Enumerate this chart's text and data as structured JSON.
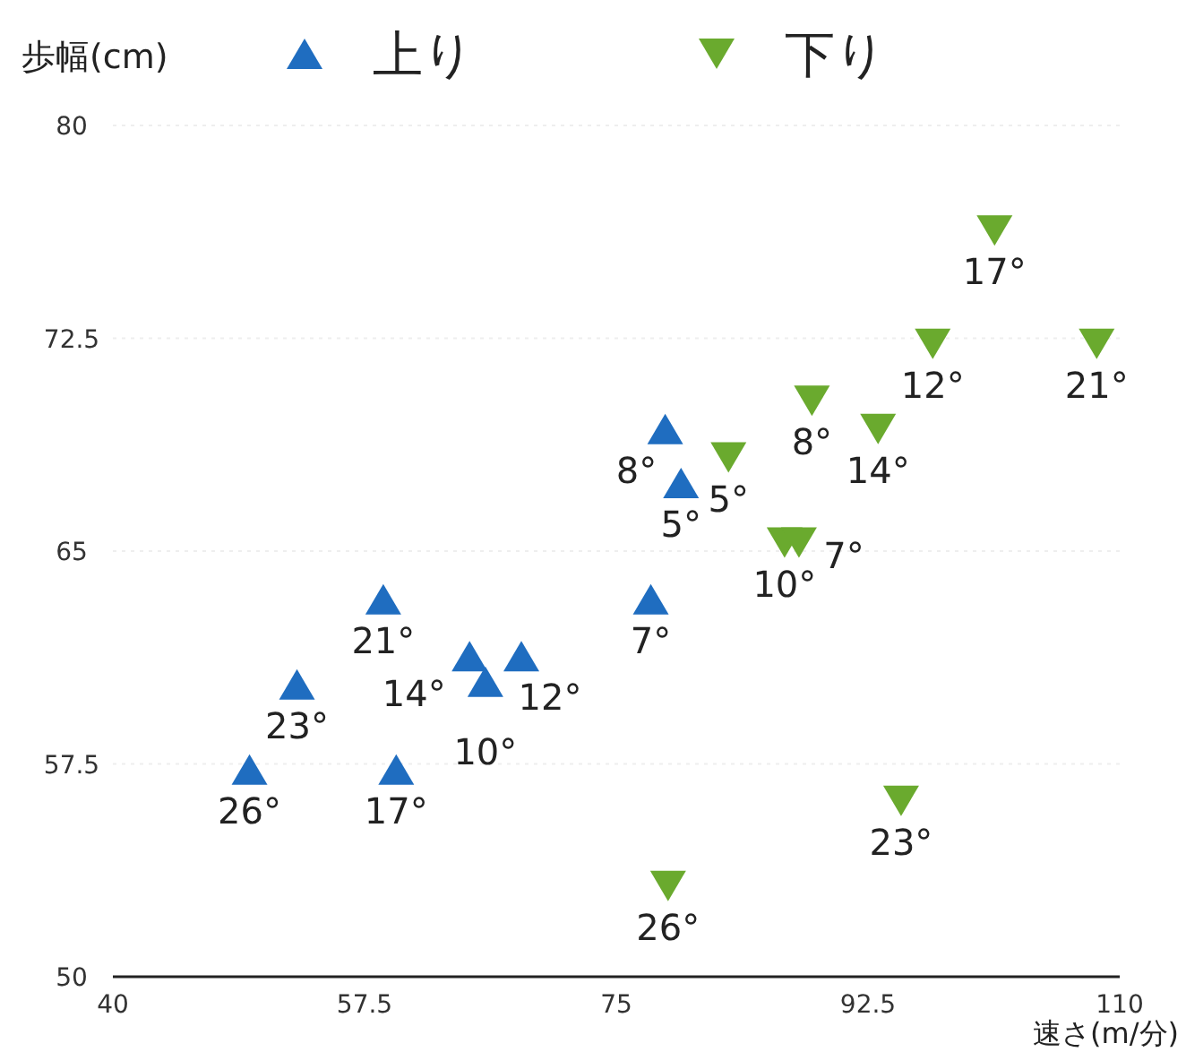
{
  "chart_data": {
    "type": "scatter",
    "ylabel": "歩幅(cm)",
    "xlabel": "速さ(m/分)",
    "xlim": [
      40,
      110
    ],
    "ylim": [
      50,
      80
    ],
    "xticks": [
      40,
      57.5,
      75,
      92.5,
      110
    ],
    "yticks": [
      50,
      57.5,
      65,
      72.5,
      80
    ],
    "grid": "y",
    "legend": "top",
    "series": [
      {
        "name": "上り",
        "color": "#1f6dc0",
        "marker": "triangle",
        "x": [
          49.5,
          52.8,
          58.8,
          59.7,
          64.8,
          68.4,
          65.9,
          77.4,
          78.4,
          79.5
        ],
        "values": [
          57.3,
          60.3,
          63.3,
          57.3,
          61.3,
          61.3,
          60.4,
          63.3,
          69.3,
          67.4
        ]
      },
      {
        "name": "下り",
        "color": "#6aaa2e",
        "marker": "triangle-down",
        "x": [
          78.6,
          94.8,
          108.4,
          101.3,
          97.0,
          93.2,
          88.6,
          82.8,
          86.7,
          87.7
        ],
        "values": [
          53.2,
          56.2,
          72.3,
          76.3,
          72.3,
          69.3,
          70.3,
          68.3,
          65.3,
          65.3
        ]
      }
    ],
    "annotations": [
      {
        "text": "26°",
        "x": 49.5,
        "y": 57.3
      },
      {
        "text": "23°",
        "x": 52.8,
        "y": 60.3
      },
      {
        "text": "21°",
        "x": 58.8,
        "y": 63.3
      },
      {
        "text": "17°",
        "x": 59.7,
        "y": 57.3
      },
      {
        "text": "14°",
        "x": 64.8,
        "y": 61.3
      },
      {
        "text": "12°",
        "x": 68.4,
        "y": 61.3
      },
      {
        "text": "10°",
        "x": 65.9,
        "y": 60.4
      },
      {
        "text": "7°",
        "x": 77.4,
        "y": 63.3
      },
      {
        "text": "8°",
        "x": 78.4,
        "y": 69.3
      },
      {
        "text": "5°",
        "x": 79.5,
        "y": 67.4
      },
      {
        "text": "26°",
        "x": 78.6,
        "y": 53.2
      },
      {
        "text": "23°",
        "x": 94.8,
        "y": 56.2
      },
      {
        "text": "21°",
        "x": 108.4,
        "y": 72.3
      },
      {
        "text": "17°",
        "x": 101.3,
        "y": 76.3
      },
      {
        "text": "12°",
        "x": 97.0,
        "y": 72.3
      },
      {
        "text": "14°",
        "x": 93.2,
        "y": 69.3
      },
      {
        "text": "8°",
        "x": 88.6,
        "y": 70.3
      },
      {
        "text": "5°",
        "x": 82.8,
        "y": 68.3
      },
      {
        "text": "10°",
        "x": 86.7,
        "y": 65.3
      },
      {
        "text": "7°",
        "x": 87.7,
        "y": 65.3
      }
    ]
  }
}
